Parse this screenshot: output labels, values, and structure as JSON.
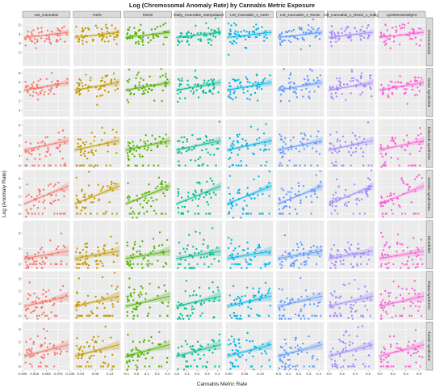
{
  "chart_data": {
    "type": "scatter",
    "title": "Log (Chromosomal Anomaly Rate) by Cannabis Metric Exposure",
    "xlabel": "Cannabis Metric Rate",
    "ylabel": "Log (Anomaly Rate)",
    "columns": [
      {
        "name": "LM_Cannabis",
        "color": "#F8766D",
        "ticks": [
          "0.000",
          "0.025",
          "0.050",
          "0.075",
          "0.100"
        ],
        "xlim": [
          0,
          0.1
        ]
      },
      {
        "name": "Herb",
        "color": "#C49A00",
        "ticks": [
          "0.04",
          "0.08",
          "0.12"
        ],
        "xlim": [
          0.02,
          0.15
        ]
      },
      {
        "name": "Resin",
        "color": "#53B400",
        "ticks": [
          "-0.1",
          "0.0",
          "0.1",
          "0.2",
          "0.3"
        ],
        "xlim": [
          -0.12,
          0.34
        ]
      },
      {
        "name": "Daily_Cannabis_Interpolated",
        "color": "#00C094",
        "ticks": [
          "0.0",
          "0.1",
          "0.2",
          "0.3",
          "0.4"
        ],
        "xlim": [
          -0.02,
          0.45
        ]
      },
      {
        "name": "LM_Cannabis_x_Herb",
        "color": "#00B6EB",
        "ticks": [
          "0.00",
          "0.05",
          "0.10"
        ],
        "xlim": [
          -0.01,
          0.14
        ]
      },
      {
        "name": "LM_Cannabis_x_Resin",
        "color": "#619CFF",
        "ticks": [
          "0.0",
          "0.1",
          "0.2",
          "0.3",
          "0.4"
        ],
        "xlim": [
          -0.02,
          0.45
        ]
      },
      {
        "name": "LM_Cannabis_x_Resin_x_Daily",
        "color": "#A58AFF",
        "ticks": [
          "0.0",
          "0.2",
          "0.4",
          "0.6"
        ],
        "xlim": [
          -0.03,
          0.7
        ]
      },
      {
        "name": "LpmResinDailyInt",
        "color": "#FB61D7",
        "ticks": [
          "0.0",
          "0.2",
          "0.4",
          "0.6"
        ],
        "xlim": [
          -0.03,
          0.7
        ]
      }
    ],
    "rows": [
      {
        "name": "Chromosomal",
        "ylim": [
          0.5,
          5.8
        ],
        "yticks": [
          2,
          3,
          4,
          5
        ],
        "slope": 0.6,
        "intercept": 3.8,
        "spread": 0.55,
        "floor": false
      },
      {
        "name": "Down Syndrome",
        "ylim": [
          0.3,
          5.5
        ],
        "yticks": [
          1,
          2,
          3,
          4,
          5
        ],
        "slope": 0.9,
        "intercept": 3.4,
        "spread": 0.7,
        "floor": false
      },
      {
        "name": "Edwards syndrome",
        "ylim": [
          -0.2,
          4.6
        ],
        "yticks": [
          0,
          1,
          2,
          3,
          4
        ],
        "slope": 1.0,
        "intercept": 1.8,
        "spread": 0.8,
        "floor": true
      },
      {
        "name": "Genetic syndromes",
        "ylim": [
          -0.5,
          5.0
        ],
        "yticks": [
          0,
          1,
          2,
          3,
          4
        ],
        "slope": 2.2,
        "intercept": 1.7,
        "spread": 0.9,
        "floor": true
      },
      {
        "name": "Klinefelter",
        "ylim": [
          -0.3,
          2.8
        ],
        "yticks": [
          0,
          1,
          2
        ],
        "slope": 0.5,
        "intercept": 0.5,
        "spread": 0.55,
        "floor": true
      },
      {
        "name": "Patau syndrome",
        "ylim": [
          -0.3,
          3.6
        ],
        "yticks": [
          0,
          1,
          2,
          3
        ],
        "slope": 0.9,
        "intercept": 1.0,
        "spread": 0.75,
        "floor": true
      },
      {
        "name": "Turner syndrome",
        "ylim": [
          -0.3,
          3.6
        ],
        "yticks": [
          0,
          1,
          2,
          3
        ],
        "slope": 1.0,
        "intercept": 1.1,
        "spread": 0.75,
        "floor": true
      }
    ],
    "grid": true,
    "legend": "none"
  }
}
